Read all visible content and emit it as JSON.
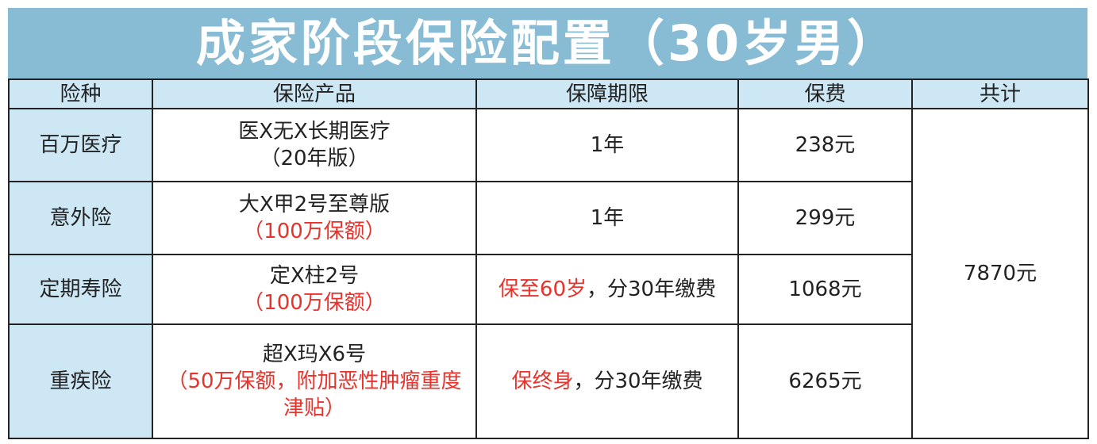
{
  "title": "成家阶段保险配置（30岁男）",
  "headers": [
    "险种",
    "保险产品",
    "保障期限",
    "保费",
    "共计"
  ],
  "rows": [
    {
      "type": "百万医疗",
      "product": "医X无X长期医疗",
      "product_note": "（20年版）",
      "term_red": "",
      "term": "1年",
      "premium": "238元"
    },
    {
      "type": "意外险",
      "product": "大X甲2号至尊版",
      "product_note": "（100万保额）",
      "term_red": "",
      "term": "1年",
      "premium": "299元"
    },
    {
      "type": "定期寿险",
      "product": "定X柱2号",
      "product_note": "（100万保额）",
      "term_red": "保至60岁",
      "term": "，分30年缴费",
      "premium": "1068元"
    },
    {
      "type": "重疾险",
      "product": "超X玛X6号",
      "product_note": "（50万保额，附加恶性肿瘤重度津贴）",
      "term_red": "保终身",
      "term": "，分30年缴费",
      "premium": "6265元"
    }
  ],
  "total": "7870元",
  "colors": {
    "title_bg": "#87bcd4",
    "header_bg": "#cde7f5",
    "highlight": "#e8322c"
  }
}
